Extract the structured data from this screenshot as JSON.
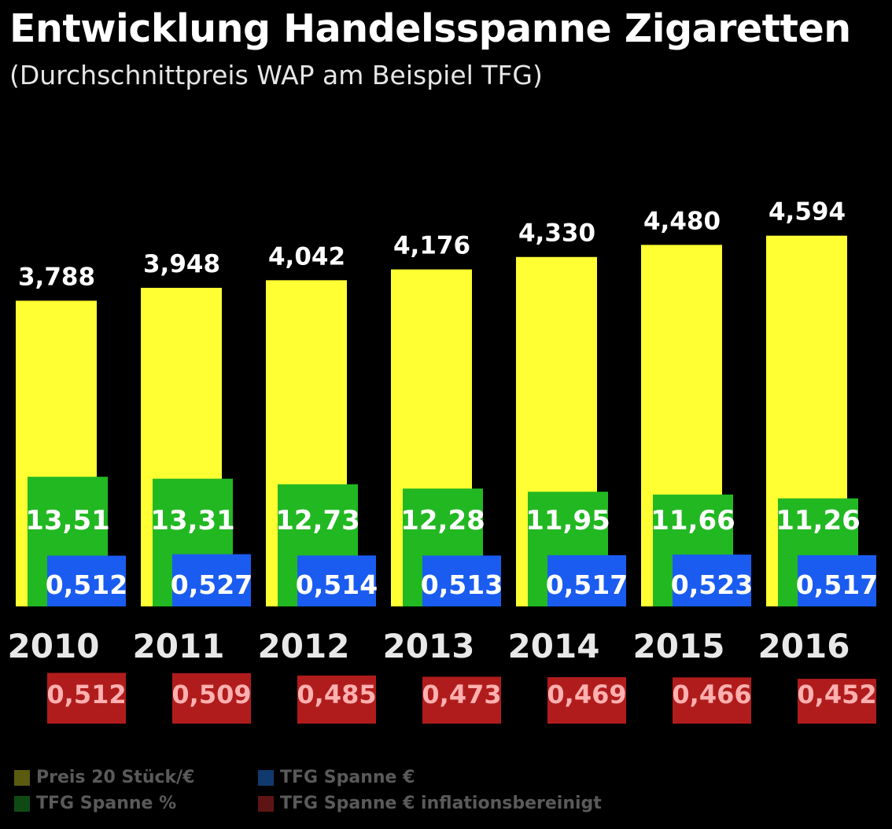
{
  "header": {
    "title": "Entwicklung Handelsspanne Zigaretten",
    "subtitle": "(Durchschnittpreis WAP am Beispiel TFG)"
  },
  "legend": [
    {
      "label": "Preis 20 Stück/€",
      "color": "#5a5a10"
    },
    {
      "label": "TFG Spanne €",
      "color": "#103a6e"
    },
    {
      "label": "TFG Spanne %",
      "color": "#0f4a14"
    },
    {
      "label": "TFG Spanne € inflationsbereinigt",
      "color": "#5e1414"
    }
  ],
  "colors": {
    "price": "#ffff33",
    "percent": "#22b822",
    "euro": "#1a5cf0",
    "inflation": "#b01c1c"
  },
  "chart_data": {
    "type": "bar",
    "title": "Entwicklung Handelsspanne Zigaretten",
    "subtitle": "(Durchschnittpreis WAP am Beispiel TFG)",
    "categories": [
      "2010",
      "2011",
      "2012",
      "2013",
      "2014",
      "2015",
      "2016"
    ],
    "series": [
      {
        "name": "Preis 20 Stück/€",
        "values": [
          3.788,
          3.948,
          4.042,
          4.176,
          4.33,
          4.48,
          4.594
        ],
        "labels": [
          "3,788",
          "3,948",
          "4,042",
          "4,176",
          "4,330",
          "4,480",
          "4,594"
        ]
      },
      {
        "name": "TFG Spanne %",
        "values": [
          13.51,
          13.31,
          12.73,
          12.28,
          11.95,
          11.66,
          11.26
        ],
        "labels": [
          "13,51",
          "13,31",
          "12,73",
          "12,28",
          "11,95",
          "11,66",
          "11,26"
        ]
      },
      {
        "name": "TFG Spanne €",
        "values": [
          0.512,
          0.527,
          0.514,
          0.513,
          0.517,
          0.523,
          0.517
        ],
        "labels": [
          "0,512",
          "0,527",
          "0,514",
          "0,513",
          "0,517",
          "0,523",
          "0,517"
        ]
      },
      {
        "name": "TFG Spanne € inflationsbereinigt",
        "values": [
          0.512,
          0.509,
          0.485,
          0.473,
          0.469,
          0.466,
          0.452
        ],
        "labels": [
          "0,512",
          "0,509",
          "0,485",
          "0,473",
          "0,469",
          "0,466",
          "0,452"
        ]
      }
    ],
    "legend_position": "bottom",
    "grid": false
  }
}
